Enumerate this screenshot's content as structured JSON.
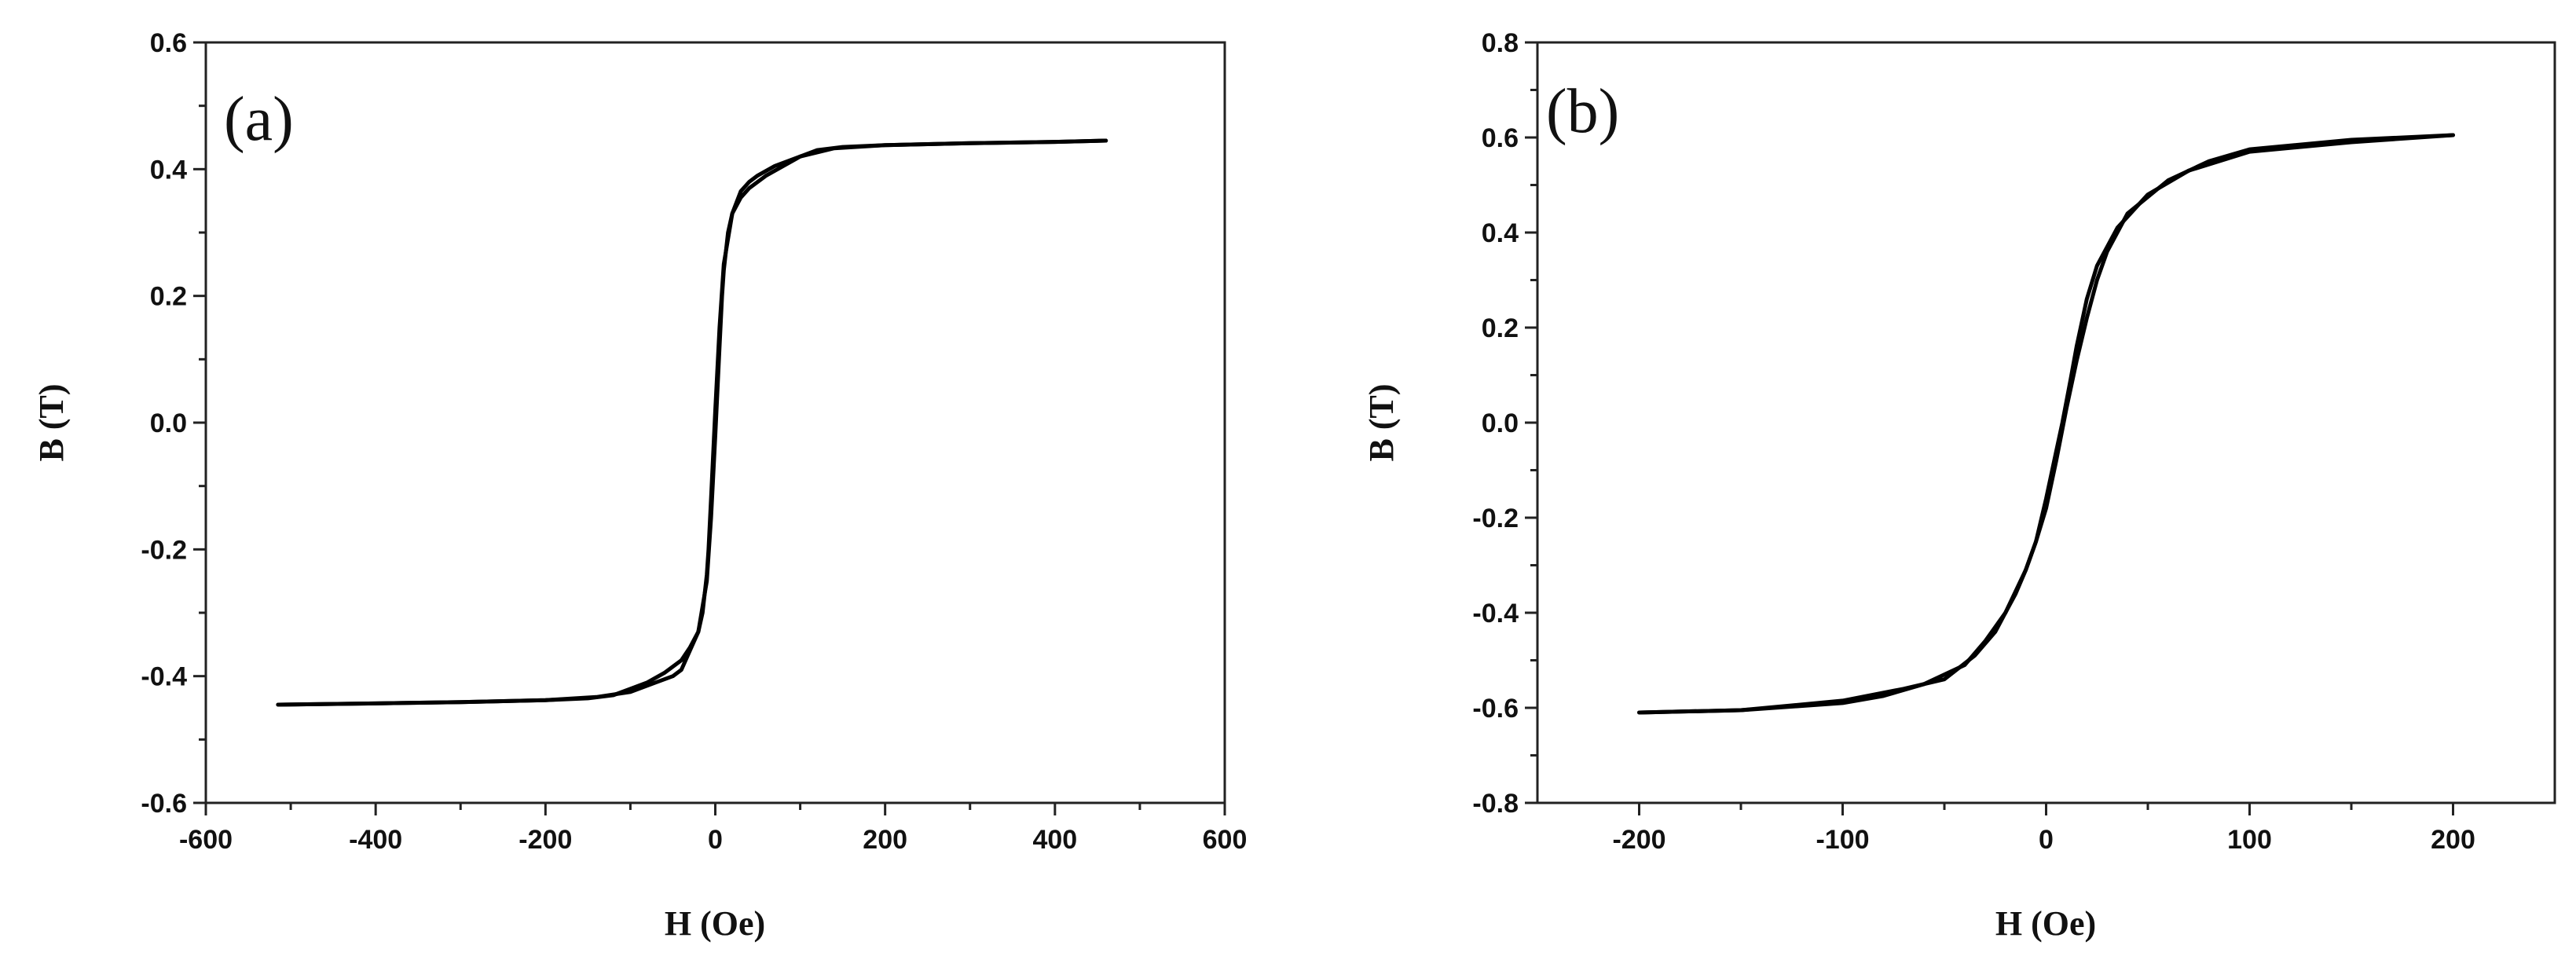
{
  "chart_data": [
    {
      "type": "line",
      "panel_label": "(a)",
      "xlabel": "H (Oe)",
      "ylabel": "B (T)",
      "xlim": [
        -600,
        600
      ],
      "ylim": [
        -0.6,
        0.6
      ],
      "xticks": [
        -600,
        -400,
        -200,
        0,
        200,
        400,
        600
      ],
      "yticks": [
        -0.6,
        -0.4,
        -0.2,
        0.0,
        0.2,
        0.4,
        0.6
      ],
      "xtick_labels": [
        "-600",
        "-400",
        "-200",
        "0",
        "200",
        "400",
        "600"
      ],
      "ytick_labels": [
        "-0.6",
        "-0.4",
        "-0.2",
        "0.0",
        "0.2",
        "0.4",
        "0.6"
      ],
      "grid": false,
      "legend": "none",
      "series": [
        {
          "color": "#000000",
          "x": [
            460,
            400,
            300,
            200,
            150,
            120,
            100,
            80,
            60,
            40,
            30,
            20,
            15,
            10,
            8,
            5,
            0,
            -5,
            -10,
            -20,
            -30,
            -40,
            -50,
            -70,
            -100,
            -140,
            -200,
            -300,
            -400,
            -515
          ],
          "y": [
            0.445,
            0.443,
            0.441,
            0.438,
            0.435,
            0.43,
            0.42,
            0.405,
            0.39,
            0.37,
            0.355,
            0.33,
            0.3,
            0.24,
            0.2,
            0.12,
            -0.02,
            -0.15,
            -0.25,
            -0.33,
            -0.36,
            -0.39,
            -0.4,
            -0.41,
            -0.425,
            -0.433,
            -0.438,
            -0.441,
            -0.443,
            -0.445
          ]
        },
        {
          "color": "#000000",
          "x": [
            -515,
            -400,
            -300,
            -200,
            -150,
            -120,
            -100,
            -80,
            -60,
            -40,
            -30,
            -20,
            -15,
            -10,
            -8,
            -5,
            0,
            5,
            10,
            20,
            30,
            40,
            50,
            70,
            100,
            140,
            200,
            300,
            400,
            460
          ],
          "y": [
            -0.445,
            -0.443,
            -0.441,
            -0.438,
            -0.435,
            -0.43,
            -0.42,
            -0.41,
            -0.395,
            -0.375,
            -0.355,
            -0.33,
            -0.3,
            -0.24,
            -0.2,
            -0.12,
            0.02,
            0.15,
            0.25,
            0.33,
            0.365,
            0.38,
            0.39,
            0.405,
            0.42,
            0.433,
            0.438,
            0.441,
            0.443,
            0.445
          ]
        }
      ]
    },
    {
      "type": "line",
      "panel_label": "(b)",
      "xlabel": "H (Oe)",
      "ylabel": "B (T)",
      "xlim": [
        -250,
        250
      ],
      "ylim": [
        -0.8,
        0.8
      ],
      "xticks": [
        -200,
        -100,
        0,
        100,
        200
      ],
      "yticks": [
        -0.8,
        -0.6,
        -0.4,
        -0.2,
        0.0,
        0.2,
        0.4,
        0.6,
        0.8
      ],
      "xtick_labels": [
        "-200",
        "-100",
        "0",
        "100",
        "200"
      ],
      "ytick_labels": [
        "-0.8",
        "-0.6",
        "-0.4",
        "-0.2",
        "0.0",
        "0.2",
        "0.4",
        "0.6",
        "0.8"
      ],
      "grid": false,
      "legend": "none",
      "series": [
        {
          "color": "#000000",
          "x": [
            200,
            150,
            100,
            70,
            50,
            35,
            25,
            20,
            15,
            12,
            8,
            5,
            0,
            -5,
            -10,
            -20,
            -30,
            -40,
            -60,
            -80,
            -100,
            -150,
            -200
          ],
          "y": [
            0.605,
            0.59,
            0.57,
            0.53,
            0.48,
            0.41,
            0.33,
            0.26,
            0.16,
            0.09,
            0.0,
            -0.06,
            -0.16,
            -0.25,
            -0.31,
            -0.4,
            -0.46,
            -0.51,
            -0.55,
            -0.575,
            -0.59,
            -0.605,
            -0.61
          ]
        },
        {
          "color": "#000000",
          "x": [
            -200,
            -150,
            -100,
            -70,
            -50,
            -35,
            -25,
            -20,
            -15,
            -10,
            -5,
            0,
            5,
            10,
            15,
            20,
            25,
            30,
            40,
            60,
            80,
            100,
            150,
            200
          ],
          "y": [
            -0.61,
            -0.605,
            -0.585,
            -0.56,
            -0.54,
            -0.49,
            -0.44,
            -0.4,
            -0.36,
            -0.31,
            -0.25,
            -0.18,
            -0.08,
            0.03,
            0.13,
            0.22,
            0.3,
            0.36,
            0.44,
            0.51,
            0.55,
            0.575,
            0.595,
            0.605
          ]
        }
      ]
    }
  ]
}
